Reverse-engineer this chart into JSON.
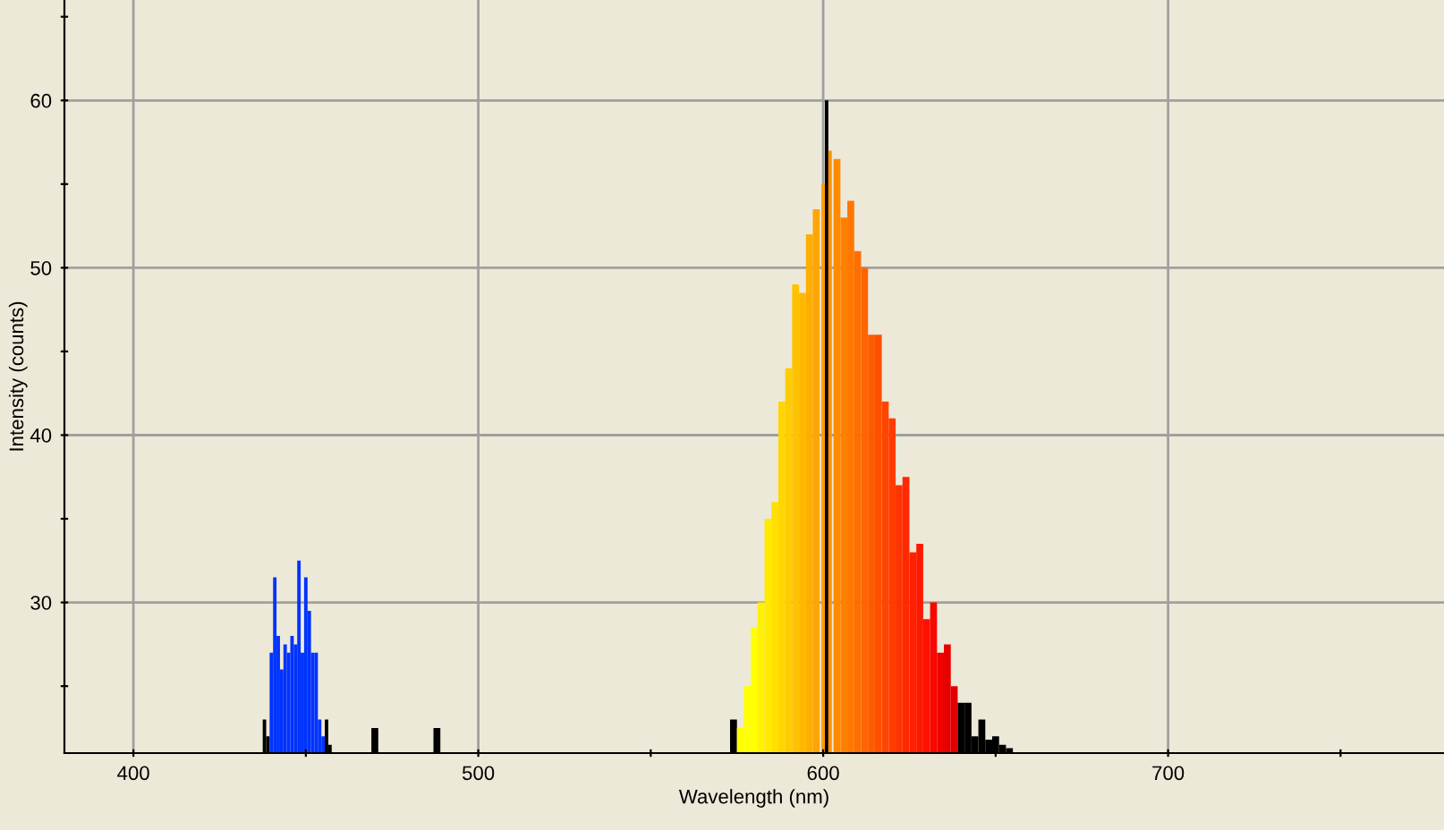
{
  "chart_data": {
    "type": "bar",
    "xlabel": "Wavelength (nm)",
    "ylabel": "Intensity (counts)",
    "x": [
      438,
      439,
      440,
      441,
      442,
      443,
      444,
      445,
      446,
      447,
      448,
      449,
      450,
      451,
      452,
      453,
      454,
      455,
      456,
      457,
      470,
      488,
      574,
      576,
      578,
      580,
      582,
      584,
      586,
      588,
      590,
      592,
      594,
      596,
      598,
      600,
      601,
      602,
      604,
      606,
      608,
      610,
      612,
      614,
      616,
      618,
      620,
      622,
      624,
      626,
      628,
      630,
      632,
      634,
      636,
      638,
      640,
      642,
      644,
      646,
      648,
      650,
      652,
      654
    ],
    "values": [
      23,
      22,
      27,
      31.5,
      28,
      26,
      27.5,
      27,
      28,
      27.5,
      32.5,
      27,
      31.5,
      29.5,
      27,
      27,
      23,
      22,
      23,
      21.5,
      22.5,
      22.5,
      23,
      22.5,
      25,
      28.5,
      30,
      35,
      36,
      42,
      44,
      49,
      48.5,
      52,
      53.5,
      55,
      60,
      57,
      56.5,
      53,
      54,
      51,
      50,
      46,
      46,
      42,
      41,
      37,
      37.5,
      33,
      33.5,
      29,
      30,
      27,
      27.5,
      25,
      24,
      24,
      22,
      23,
      21.8,
      22,
      21.5,
      21.3
    ],
    "colors": [
      "#000000",
      "#000000",
      "#0033ff",
      "#0033ff",
      "#0033ff",
      "#0033ff",
      "#0033ff",
      "#0033ff",
      "#0033ff",
      "#0033ff",
      "#0033ff",
      "#0033ff",
      "#0033ff",
      "#0033ff",
      "#0033ff",
      "#0033ff",
      "#0033ff",
      "#0033ff",
      "#000000",
      "#000000",
      "#000000",
      "#000000",
      "#000000",
      "#ffff00",
      "#ffff00",
      "#ffff00",
      "#fff200",
      "#ffea00",
      "#ffe000",
      "#ffd600",
      "#ffcc00",
      "#ffc200",
      "#ffb800",
      "#ffae00",
      "#ffa500",
      "#ff9c00",
      "#000000",
      "#ff9300",
      "#ff8a00",
      "#ff8000",
      "#ff7700",
      "#ff6e00",
      "#ff6400",
      "#ff5a00",
      "#ff5000",
      "#ff4600",
      "#ff3c00",
      "#ff3200",
      "#ff2800",
      "#ff2000",
      "#ff1800",
      "#ff1000",
      "#f80800",
      "#f00000",
      "#e80000",
      "#e00000",
      "#000000",
      "#000000",
      "#000000",
      "#000000",
      "#000000",
      "#000000",
      "#000000",
      "#000000"
    ],
    "xlim": [
      380,
      780
    ],
    "ylim": [
      21,
      66
    ],
    "xticks": [
      {
        "value": 400,
        "label": "400"
      },
      {
        "value": 450,
        "label": null
      },
      {
        "value": 500,
        "label": "500"
      },
      {
        "value": 550,
        "label": null
      },
      {
        "value": 600,
        "label": "600"
      },
      {
        "value": 650,
        "label": null
      },
      {
        "value": 700,
        "label": "700"
      },
      {
        "value": 750,
        "label": null
      }
    ],
    "yticks": [
      {
        "value": 25,
        "label": null
      },
      {
        "value": 30,
        "label": "30"
      },
      {
        "value": 35,
        "label": null
      },
      {
        "value": 40,
        "label": "40"
      },
      {
        "value": 45,
        "label": null
      },
      {
        "value": 50,
        "label": "50"
      },
      {
        "value": 55,
        "label": null
      },
      {
        "value": 60,
        "label": "60"
      },
      {
        "value": 65,
        "label": null
      }
    ],
    "grid": true
  }
}
